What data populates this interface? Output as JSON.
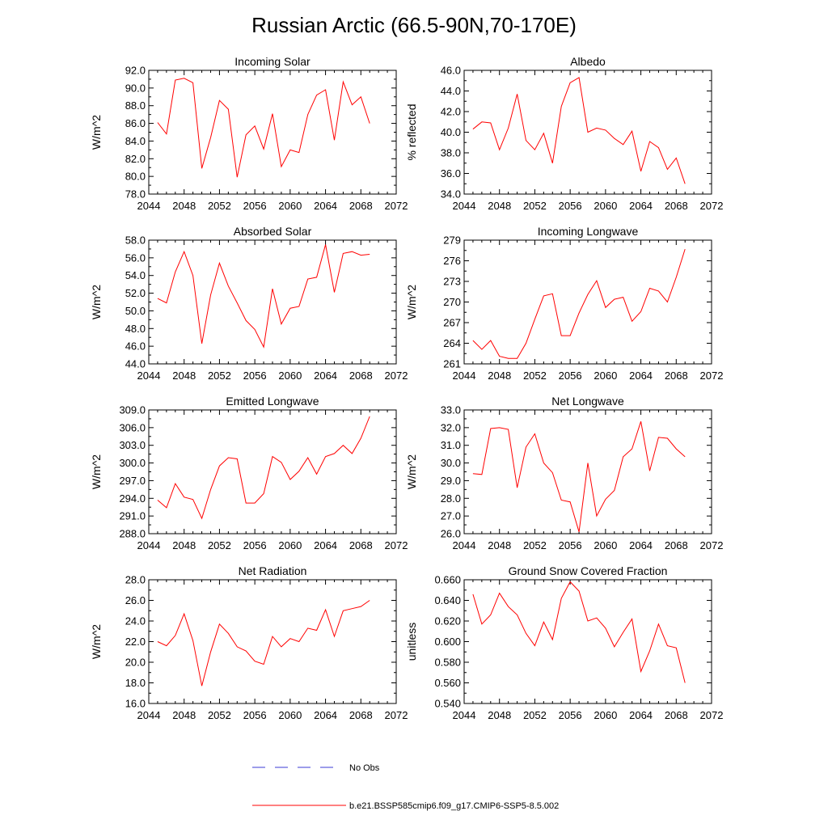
{
  "figure": {
    "title": "Russian Arctic (66.5-90N,70-170E)"
  },
  "colors": {
    "model_line": "#ff0000",
    "obs_line": "#3b3bd6",
    "axis": "#000000"
  },
  "legend": {
    "obs_label": "No Obs",
    "model_label": "b.e21.BSSP585cmip6.f09_g17.CMIP6-SSP5-8.5.002"
  },
  "chart_data": [
    {
      "type": "line",
      "title": "Incoming Solar",
      "ylabel": "W/m^2",
      "xlim": [
        2044,
        2072
      ],
      "ylim": [
        78,
        92
      ],
      "xticks": [
        2044,
        2048,
        2052,
        2056,
        2060,
        2064,
        2068,
        2072
      ],
      "yticks": [
        "78.0",
        "80.0",
        "82.0",
        "84.0",
        "86.0",
        "88.0",
        "90.0",
        "92.0"
      ],
      "series": [
        {
          "x": [
            2045,
            2046,
            2047,
            2048,
            2049,
            2050,
            2051,
            2052,
            2053,
            2054,
            2055,
            2056,
            2057,
            2058,
            2059,
            2060,
            2061,
            2062,
            2063,
            2064,
            2065,
            2066,
            2067,
            2068,
            2069
          ],
          "y": [
            86.1,
            84.8,
            90.9,
            91.1,
            90.6,
            80.9,
            84.4,
            88.6,
            87.6,
            79.9,
            84.7,
            85.7,
            83.1,
            87.1,
            81.1,
            83.0,
            82.7,
            87.0,
            89.2,
            89.8,
            84.1,
            90.7,
            88.1,
            89.0,
            86.0
          ]
        }
      ]
    },
    {
      "type": "line",
      "title": "Albedo",
      "ylabel": "% reflected",
      "xlim": [
        2044,
        2072
      ],
      "ylim": [
        34,
        46
      ],
      "xticks": [
        2044,
        2048,
        2052,
        2056,
        2060,
        2064,
        2068,
        2072
      ],
      "yticks": [
        "34.0",
        "36.0",
        "38.0",
        "40.0",
        "42.0",
        "44.0",
        "46.0"
      ],
      "series": [
        {
          "x": [
            2045,
            2046,
            2047,
            2048,
            2049,
            2050,
            2051,
            2052,
            2053,
            2054,
            2055,
            2056,
            2057,
            2058,
            2059,
            2060,
            2061,
            2062,
            2063,
            2064,
            2065,
            2066,
            2067,
            2068,
            2069
          ],
          "y": [
            40.3,
            41.0,
            40.9,
            38.3,
            40.4,
            43.7,
            39.2,
            38.3,
            39.9,
            37.0,
            42.5,
            44.8,
            45.3,
            40.0,
            40.4,
            40.2,
            39.4,
            38.8,
            40.1,
            36.2,
            39.1,
            38.5,
            36.4,
            37.5,
            35.0
          ]
        }
      ]
    },
    {
      "type": "line",
      "title": "Absorbed Solar",
      "ylabel": "W/m^2",
      "xlim": [
        2044,
        2072
      ],
      "ylim": [
        44,
        58
      ],
      "xticks": [
        2044,
        2048,
        2052,
        2056,
        2060,
        2064,
        2068,
        2072
      ],
      "yticks": [
        "44.0",
        "46.0",
        "48.0",
        "50.0",
        "52.0",
        "54.0",
        "56.0",
        "58.0"
      ],
      "series": [
        {
          "x": [
            2045,
            2046,
            2047,
            2048,
            2049,
            2050,
            2051,
            2052,
            2053,
            2054,
            2055,
            2056,
            2057,
            2058,
            2059,
            2060,
            2061,
            2062,
            2063,
            2064,
            2065,
            2066,
            2067,
            2068,
            2069
          ],
          "y": [
            51.4,
            50.9,
            54.4,
            56.7,
            54.0,
            46.3,
            51.8,
            55.4,
            52.8,
            50.9,
            48.9,
            47.9,
            45.9,
            52.5,
            48.5,
            50.3,
            50.5,
            53.6,
            53.8,
            57.5,
            52.1,
            56.5,
            56.7,
            56.3,
            56.4
          ]
        }
      ]
    },
    {
      "type": "line",
      "title": "Incoming Longwave",
      "ylabel": "W/m^2",
      "xlim": [
        2044,
        2072
      ],
      "ylim": [
        261,
        279
      ],
      "xticks": [
        2044,
        2048,
        2052,
        2056,
        2060,
        2064,
        2068,
        2072
      ],
      "yticks": [
        "261",
        "264",
        "267",
        "270",
        "273",
        "276",
        "279"
      ],
      "series": [
        {
          "x": [
            2045,
            2046,
            2047,
            2048,
            2049,
            2050,
            2051,
            2052,
            2053,
            2054,
            2055,
            2056,
            2057,
            2058,
            2059,
            2060,
            2061,
            2062,
            2063,
            2064,
            2065,
            2066,
            2067,
            2068,
            2069
          ],
          "y": [
            264.4,
            263.1,
            264.4,
            262.1,
            261.8,
            261.8,
            264.0,
            267.5,
            270.9,
            271.2,
            265.1,
            265.1,
            268.4,
            271.1,
            273.1,
            269.2,
            270.4,
            270.7,
            267.2,
            268.6,
            272.0,
            271.6,
            270.0,
            273.6,
            277.7
          ]
        }
      ]
    },
    {
      "type": "line",
      "title": "Emitted Longwave",
      "ylabel": "W/m^2",
      "xlim": [
        2044,
        2072
      ],
      "ylim": [
        288,
        309
      ],
      "xticks": [
        2044,
        2048,
        2052,
        2056,
        2060,
        2064,
        2068,
        2072
      ],
      "yticks": [
        "288.0",
        "291.0",
        "294.0",
        "297.0",
        "300.0",
        "303.0",
        "306.0",
        "309.0"
      ],
      "series": [
        {
          "x": [
            2045,
            2046,
            2047,
            2048,
            2049,
            2050,
            2051,
            2052,
            2053,
            2054,
            2055,
            2056,
            2057,
            2058,
            2059,
            2060,
            2061,
            2062,
            2063,
            2064,
            2065,
            2066,
            2067,
            2068,
            2069
          ],
          "y": [
            293.7,
            292.4,
            296.5,
            294.2,
            293.8,
            290.6,
            295.5,
            299.5,
            300.9,
            300.7,
            293.2,
            293.2,
            294.8,
            301.1,
            300.1,
            297.2,
            298.6,
            300.9,
            298.1,
            301.1,
            301.6,
            303.0,
            301.6,
            304.2,
            307.9
          ]
        }
      ]
    },
    {
      "type": "line",
      "title": "Net Longwave",
      "ylabel": "W/m^2",
      "xlim": [
        2044,
        2072
      ],
      "ylim": [
        26,
        33
      ],
      "xticks": [
        2044,
        2048,
        2052,
        2056,
        2060,
        2064,
        2068,
        2072
      ],
      "yticks": [
        "26.0",
        "27.0",
        "28.0",
        "29.0",
        "30.0",
        "31.0",
        "32.0",
        "33.0"
      ],
      "series": [
        {
          "x": [
            2045,
            2046,
            2047,
            2048,
            2049,
            2050,
            2051,
            2052,
            2053,
            2054,
            2055,
            2056,
            2057,
            2058,
            2059,
            2060,
            2061,
            2062,
            2063,
            2064,
            2065,
            2066,
            2067,
            2068,
            2069
          ],
          "y": [
            29.4,
            29.35,
            31.95,
            32.0,
            31.9,
            28.6,
            30.9,
            31.65,
            30.0,
            29.45,
            27.9,
            27.8,
            26.1,
            30.0,
            27.0,
            27.95,
            28.45,
            30.35,
            30.8,
            32.35,
            29.55,
            31.45,
            31.4,
            30.8,
            30.35
          ]
        }
      ]
    },
    {
      "type": "line",
      "title": "Net Radiation",
      "ylabel": "W/m^2",
      "xlim": [
        2044,
        2072
      ],
      "ylim": [
        16,
        28
      ],
      "xticks": [
        2044,
        2048,
        2052,
        2056,
        2060,
        2064,
        2068,
        2072
      ],
      "yticks": [
        "16.0",
        "18.0",
        "20.0",
        "22.0",
        "24.0",
        "26.0",
        "28.0"
      ],
      "series": [
        {
          "x": [
            2045,
            2046,
            2047,
            2048,
            2049,
            2050,
            2051,
            2052,
            2053,
            2054,
            2055,
            2056,
            2057,
            2058,
            2059,
            2060,
            2061,
            2062,
            2063,
            2064,
            2065,
            2066,
            2067,
            2068,
            2069
          ],
          "y": [
            22.0,
            21.6,
            22.6,
            24.7,
            22.1,
            17.7,
            21.0,
            23.7,
            22.8,
            21.5,
            21.1,
            20.1,
            19.8,
            22.5,
            21.5,
            22.3,
            22.0,
            23.3,
            23.1,
            25.1,
            22.5,
            25.0,
            25.2,
            25.4,
            26.0
          ]
        }
      ]
    },
    {
      "type": "line",
      "title": "Ground Snow Covered Fraction",
      "ylabel": "unitless",
      "xlim": [
        2044,
        2072
      ],
      "ylim": [
        0.54,
        0.66
      ],
      "xticks": [
        2044,
        2048,
        2052,
        2056,
        2060,
        2064,
        2068,
        2072
      ],
      "yticks": [
        "0.540",
        "0.560",
        "0.580",
        "0.600",
        "0.620",
        "0.640",
        "0.660"
      ],
      "series": [
        {
          "x": [
            2045,
            2046,
            2047,
            2048,
            2049,
            2050,
            2051,
            2052,
            2053,
            2054,
            2055,
            2056,
            2057,
            2058,
            2059,
            2060,
            2061,
            2062,
            2063,
            2064,
            2065,
            2066,
            2067,
            2068,
            2069
          ],
          "y": [
            0.646,
            0.617,
            0.626,
            0.647,
            0.634,
            0.626,
            0.608,
            0.596,
            0.619,
            0.602,
            0.642,
            0.658,
            0.649,
            0.62,
            0.623,
            0.613,
            0.595,
            0.609,
            0.622,
            0.571,
            0.591,
            0.617,
            0.596,
            0.594,
            0.56
          ]
        }
      ]
    }
  ]
}
